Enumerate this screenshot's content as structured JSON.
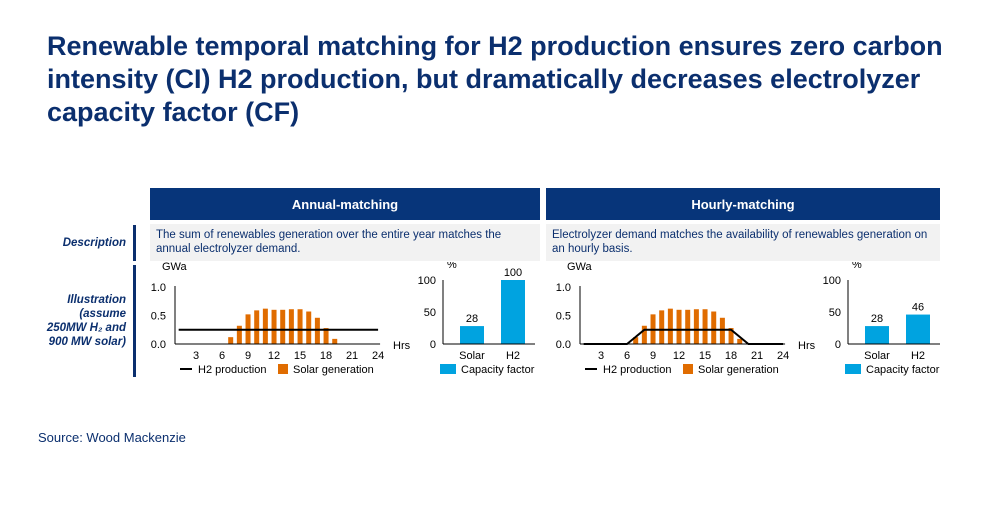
{
  "title": "Renewable temporal matching for H2 production ensures zero carbon intensity (CI) H2 production, but dramatically decreases electrolyzer capacity factor (CF)",
  "row_labels": {
    "description": "Description",
    "illustration_lines": [
      "Illustration",
      "(assume",
      "250MW H₂ and",
      "900 MW solar)"
    ]
  },
  "columns": [
    {
      "header": "Annual-matching",
      "description": "The sum of renewables generation over the entire year matches the annual electrolyzer demand."
    },
    {
      "header": "Hourly-matching",
      "description": "Electrolyzer demand matches the availability of renewables generation on an hourly basis."
    }
  ],
  "source": "Source: Wood Mackenzie",
  "colors": {
    "navy": "#0b2f6e",
    "header": "#07357a",
    "solar": "#e06c00",
    "capacity": "#00a3e0",
    "line": "#000000"
  },
  "chart_data": [
    {
      "type": "bar+line",
      "panel": "Annual-matching",
      "ylabel": "GWa",
      "xlabel": "Hrs",
      "ylim": [
        0,
        1.0
      ],
      "yticks": [
        "0.0",
        "0.5",
        "1.0"
      ],
      "xlim": [
        0,
        24
      ],
      "xticks": [
        "3",
        "6",
        "9",
        "12",
        "15",
        "18",
        "21",
        "24"
      ],
      "bars": {
        "name": "Solar generation",
        "x": [
          7,
          8,
          9,
          10,
          11,
          12,
          13,
          14,
          15,
          16,
          17,
          18,
          19
        ],
        "values": [
          0.12,
          0.32,
          0.52,
          0.59,
          0.62,
          0.6,
          0.6,
          0.61,
          0.61,
          0.57,
          0.46,
          0.28,
          0.09
        ]
      },
      "line": {
        "name": "H2 production",
        "x": [
          1,
          24
        ],
        "values": [
          0.25,
          0.25
        ]
      }
    },
    {
      "type": "bar",
      "panel": "Annual-matching",
      "ylabel": "%",
      "ylim": [
        0,
        100
      ],
      "yticks": [
        "0",
        "50",
        "100"
      ],
      "categories": [
        "Solar",
        "H2"
      ],
      "values": [
        28,
        100
      ],
      "labels": [
        "28",
        "100"
      ],
      "legend": "Capacity factor"
    },
    {
      "type": "bar+line",
      "panel": "Hourly-matching",
      "ylabel": "GWa",
      "xlabel": "Hrs",
      "ylim": [
        0,
        1.0
      ],
      "yticks": [
        "0.0",
        "0.5",
        "1.0"
      ],
      "xlim": [
        0,
        24
      ],
      "xticks": [
        "3",
        "6",
        "9",
        "12",
        "15",
        "18",
        "21",
        "24"
      ],
      "bars": {
        "name": "Solar generation",
        "x": [
          7,
          8,
          9,
          10,
          11,
          12,
          13,
          14,
          15,
          16,
          17,
          18,
          19
        ],
        "values": [
          0.12,
          0.32,
          0.52,
          0.59,
          0.62,
          0.6,
          0.6,
          0.61,
          0.61,
          0.57,
          0.46,
          0.28,
          0.09
        ]
      },
      "line": {
        "name": "H2 production",
        "x": [
          1,
          6,
          8,
          18,
          20,
          24
        ],
        "values": [
          0,
          0,
          0.25,
          0.25,
          0,
          0
        ]
      }
    },
    {
      "type": "bar",
      "panel": "Hourly-matching",
      "ylabel": "%",
      "ylim": [
        0,
        100
      ],
      "yticks": [
        "0",
        "50",
        "100"
      ],
      "categories": [
        "Solar",
        "H2"
      ],
      "values": [
        28,
        46
      ],
      "labels": [
        "28",
        "46"
      ],
      "legend": "Capacity factor"
    }
  ]
}
